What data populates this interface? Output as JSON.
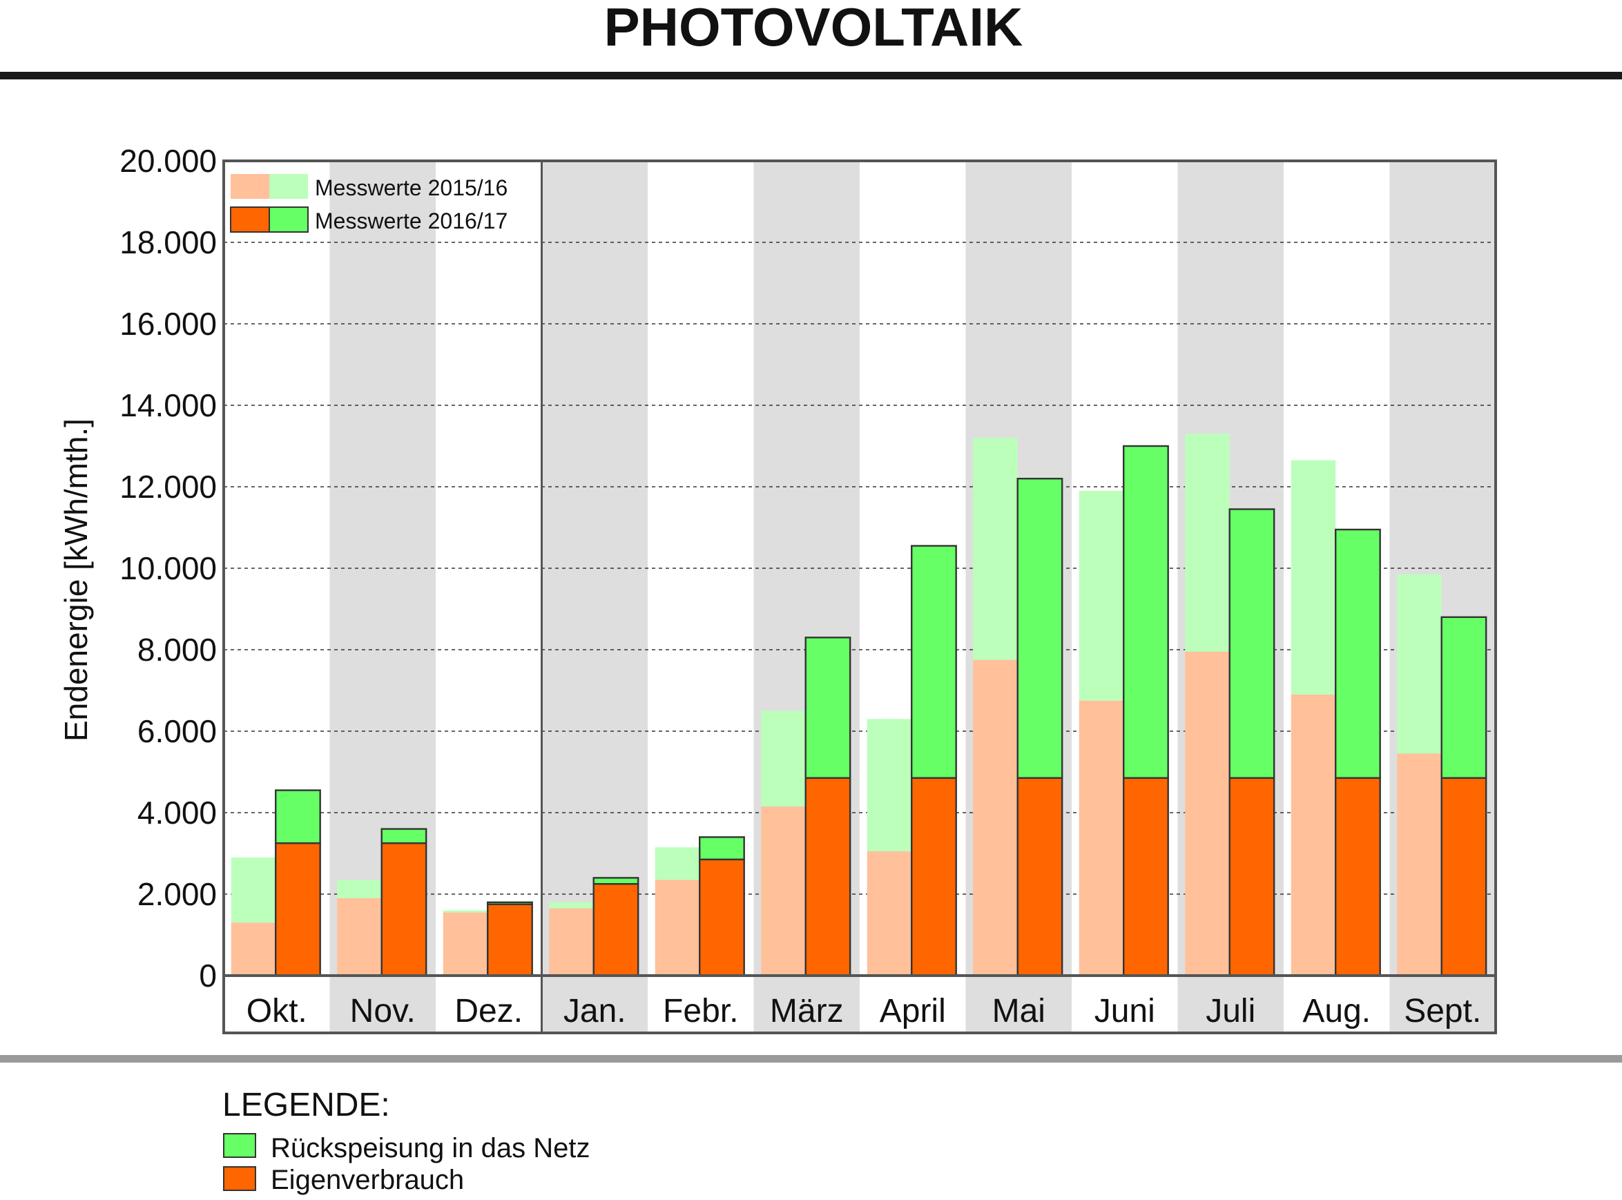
{
  "title": "PHOTOVOLTAIK",
  "colors": {
    "eigen_2016": "#ff6600",
    "rueck_2016": "#66ff66",
    "eigen_2015": "#ffc09a",
    "rueck_2015": "#bbffbb",
    "band": "#dedede"
  },
  "chart_data": {
    "type": "bar",
    "stacked": true,
    "ylabel": "Endenergie [kWh/mth.]",
    "ylim": [
      0,
      20000
    ],
    "yticks": [
      0,
      2000,
      4000,
      6000,
      8000,
      10000,
      12000,
      14000,
      16000,
      18000,
      20000
    ],
    "ytick_labels": [
      "0",
      "2.000",
      "4.000",
      "6.000",
      "8.000",
      "10.000",
      "12.000",
      "14.000",
      "16.000",
      "18.000",
      "20.000"
    ],
    "grid": true,
    "categories": [
      "Okt.",
      "Nov.",
      "Dez.",
      "Jan.",
      "Febr.",
      "März",
      "April",
      "Mai",
      "Juni",
      "Juli",
      "Aug.",
      "Sept."
    ],
    "series": [
      {
        "name": "Messwerte 2015/16",
        "eigenverbrauch": [
          1300,
          1900,
          1550,
          1650,
          2350,
          4150,
          3050,
          7750,
          6750,
          7950,
          6900,
          5450
        ],
        "total": [
          2900,
          2350,
          1600,
          1800,
          3150,
          6500,
          6300,
          13200,
          11900,
          13300,
          12650,
          9850
        ]
      },
      {
        "name": "Messwerte 2016/17",
        "eigenverbrauch": [
          3250,
          3250,
          1750,
          2250,
          2850,
          4850,
          4850,
          4850,
          4850,
          4850,
          4850,
          4850
        ],
        "total": [
          4550,
          3600,
          1800,
          2400,
          3400,
          8300,
          10550,
          12200,
          13000,
          11450,
          10950,
          8800
        ]
      }
    ],
    "inner_legend": [
      "Messwerte 2015/16",
      "Messwerte 2016/17"
    ],
    "legend_placement": "top-left"
  },
  "legend": {
    "title": "LEGENDE:",
    "items": [
      {
        "label": "Rückspeisung in das Netz",
        "color": "#66ff66"
      },
      {
        "label": "Eigenverbrauch",
        "color": "#ff6600"
      }
    ]
  }
}
